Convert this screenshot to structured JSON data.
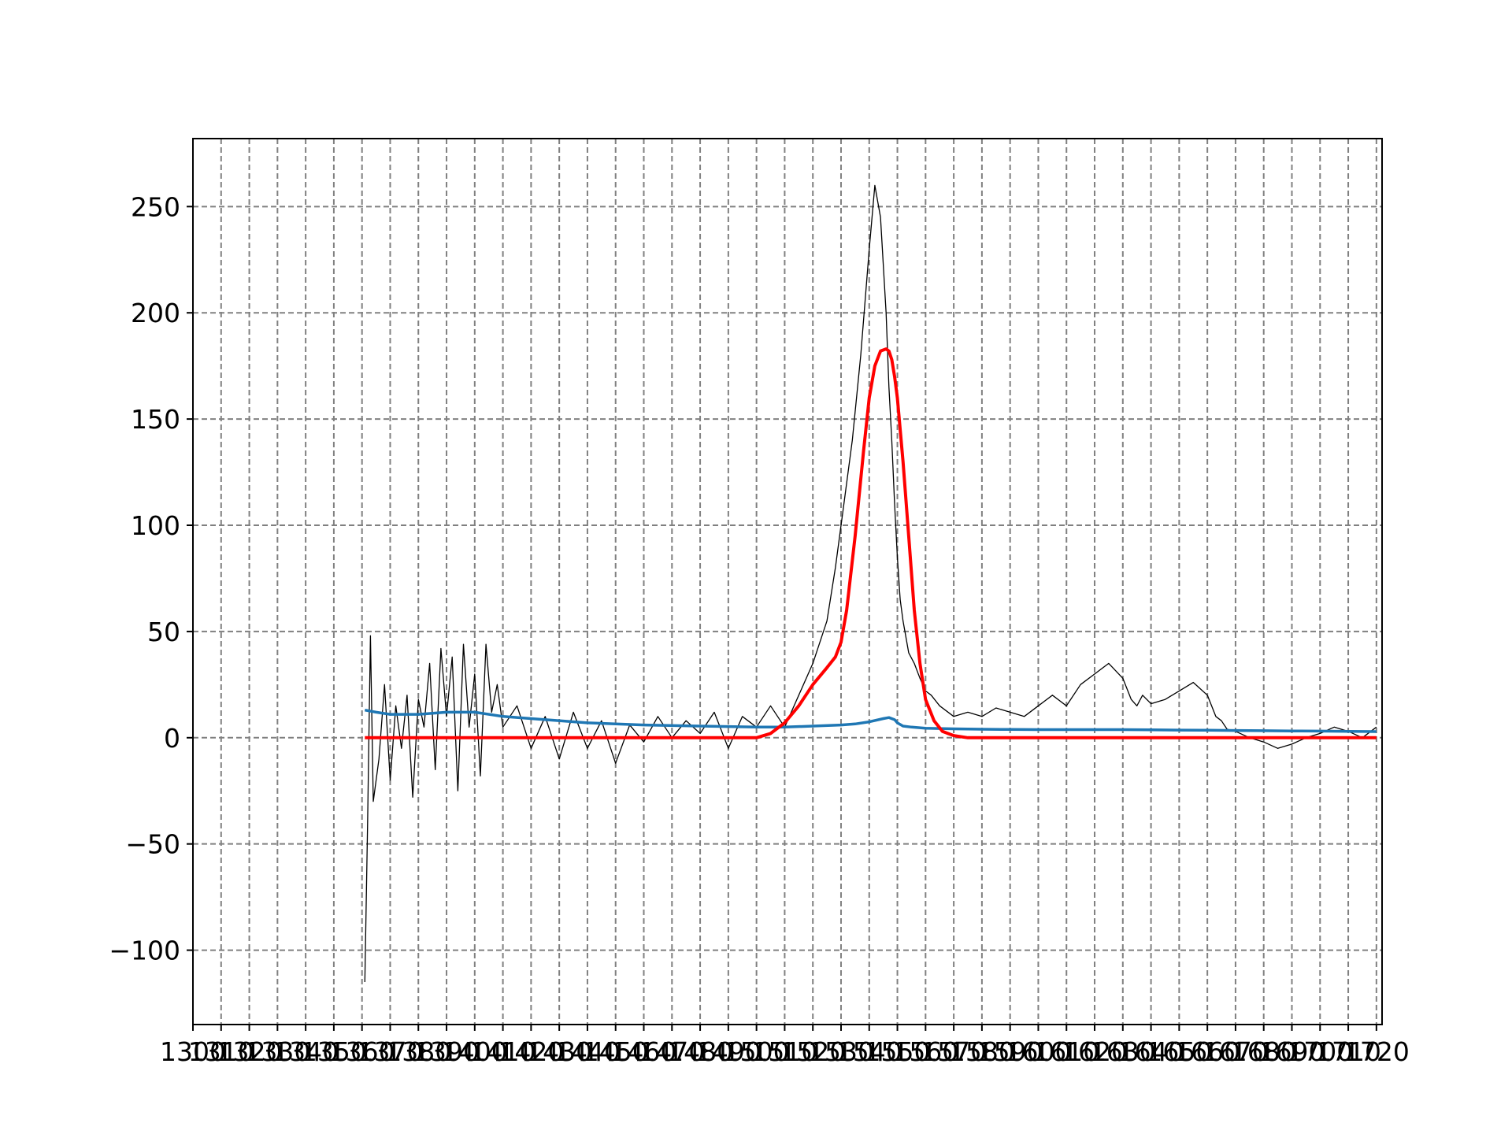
{
  "chart_data": {
    "type": "line",
    "title": "",
    "xlabel": "",
    "ylabel": "",
    "xlim": [
      1300,
      1722
    ],
    "ylim": [
      -135,
      282
    ],
    "grid": true,
    "grid_style": "dashed",
    "y_ticks": [
      -100,
      -50,
      0,
      50,
      100,
      150,
      200,
      250
    ],
    "y_tick_labels": [
      "−100",
      "−50",
      "0",
      "50",
      "100",
      "150",
      "200",
      "250"
    ],
    "x_ticks": [
      1300,
      1310,
      1320,
      1330,
      1340,
      1350,
      1360,
      1370,
      1380,
      1390,
      1400,
      1410,
      1420,
      1430,
      1440,
      1450,
      1460,
      1470,
      1480,
      1490,
      1500,
      1510,
      1520,
      1530,
      1540,
      1550,
      1560,
      1570,
      1580,
      1590,
      1600,
      1610,
      1620,
      1630,
      1640,
      1650,
      1660,
      1670,
      1680,
      1690,
      1700,
      1710,
      1720
    ],
    "x_tick_labels": [
      "1300",
      "1310",
      "1320",
      "1330",
      "1340",
      "1350",
      "1360",
      "1370",
      "1380",
      "1390",
      "1400",
      "1410",
      "1420",
      "1430",
      "1440",
      "1450",
      "1460",
      "1470",
      "1480",
      "1490",
      "1500",
      "1510",
      "1520",
      "1530",
      "1540",
      "1550",
      "1560",
      "1570",
      "1580",
      "1590",
      "1600",
      "1610",
      "1620",
      "1630",
      "1640",
      "1650",
      "1660",
      "1670",
      "1680",
      "1690",
      "1700",
      "1710",
      "1720"
    ],
    "series": [
      {
        "color": "#000000",
        "style": "thin",
        "x": [
          1361,
          1362,
          1363,
          1364,
          1366,
          1368,
          1370,
          1372,
          1374,
          1376,
          1378,
          1380,
          1382,
          1384,
          1386,
          1388,
          1390,
          1392,
          1394,
          1396,
          1398,
          1400,
          1402,
          1404,
          1406,
          1408,
          1410,
          1415,
          1420,
          1425,
          1430,
          1435,
          1440,
          1445,
          1450,
          1455,
          1460,
          1465,
          1470,
          1475,
          1480,
          1485,
          1490,
          1495,
          1500,
          1505,
          1510,
          1515,
          1520,
          1525,
          1528,
          1531,
          1534,
          1537,
          1540,
          1542,
          1544,
          1546,
          1547,
          1548,
          1549,
          1550,
          1551,
          1552,
          1554,
          1556,
          1558,
          1560,
          1562,
          1565,
          1570,
          1575,
          1580,
          1585,
          1590,
          1595,
          1600,
          1605,
          1610,
          1615,
          1620,
          1625,
          1630,
          1633,
          1635,
          1637,
          1640,
          1645,
          1650,
          1655,
          1660,
          1663,
          1665,
          1667,
          1670,
          1675,
          1680,
          1685,
          1690,
          1695,
          1700,
          1705,
          1710,
          1715,
          1720
        ],
        "y": [
          -115,
          -40,
          48,
          -30,
          -10,
          25,
          -20,
          15,
          -5,
          20,
          -28,
          18,
          5,
          35,
          -15,
          42,
          10,
          38,
          -25,
          44,
          5,
          30,
          -18,
          44,
          12,
          25,
          5,
          15,
          -5,
          10,
          -10,
          12,
          -5,
          8,
          -12,
          6,
          -2,
          10,
          0,
          8,
          2,
          12,
          -5,
          10,
          5,
          15,
          5,
          20,
          35,
          55,
          80,
          110,
          140,
          180,
          230,
          260,
          245,
          200,
          165,
          140,
          110,
          85,
          65,
          55,
          40,
          35,
          28,
          22,
          20,
          15,
          10,
          12,
          10,
          14,
          12,
          10,
          15,
          20,
          15,
          25,
          30,
          35,
          28,
          18,
          15,
          20,
          16,
          18,
          22,
          26,
          20,
          10,
          8,
          4,
          3,
          0,
          -2,
          -5,
          -3,
          0,
          2,
          5,
          3,
          0,
          5
        ]
      },
      {
        "color": "#1f77b4",
        "style": "medium",
        "x": [
          1361,
          1365,
          1370,
          1380,
          1390,
          1400,
          1410,
          1420,
          1440,
          1460,
          1480,
          1500,
          1510,
          1520,
          1530,
          1535,
          1540,
          1545,
          1547,
          1549,
          1550,
          1552,
          1555,
          1560,
          1570,
          1580,
          1590,
          1600,
          1610,
          1620,
          1630,
          1640,
          1650,
          1660,
          1670,
          1680,
          1690,
          1700,
          1710,
          1720
        ],
        "y": [
          13,
          12,
          11,
          11,
          12,
          12,
          10,
          9,
          7,
          6,
          5.5,
          5,
          5,
          5.5,
          6,
          6.5,
          7.5,
          9,
          9.5,
          8.5,
          7,
          5.5,
          5,
          4.5,
          4.2,
          4,
          3.9,
          3.8,
          3.8,
          3.8,
          3.8,
          3.7,
          3.6,
          3.5,
          3.4,
          3.3,
          3.2,
          3.1,
          3,
          2.9
        ]
      },
      {
        "color": "#ff0000",
        "style": "thick",
        "x": [
          1361,
          1400,
          1450,
          1500,
          1505,
          1510,
          1515,
          1520,
          1525,
          1528,
          1530,
          1532,
          1535,
          1538,
          1540,
          1542,
          1544,
          1546,
          1547,
          1548,
          1549,
          1550,
          1552,
          1554,
          1556,
          1558,
          1560,
          1563,
          1566,
          1570,
          1575,
          1580,
          1600,
          1650,
          1700,
          1720
        ],
        "y": [
          0,
          0,
          0,
          0,
          2,
          7,
          15,
          25,
          33,
          38,
          45,
          60,
          95,
          135,
          160,
          175,
          182,
          183,
          182,
          178,
          170,
          160,
          130,
          95,
          60,
          35,
          18,
          8,
          3,
          1,
          0,
          0,
          0,
          0,
          0,
          0
        ]
      }
    ]
  }
}
